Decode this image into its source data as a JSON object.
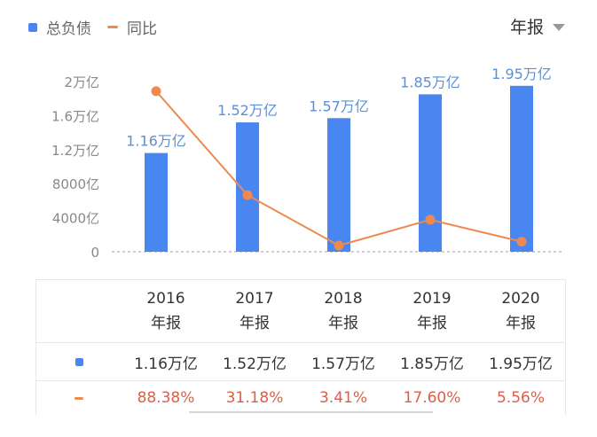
{
  "legend": {
    "bar_label": "总负债",
    "line_label": "同比"
  },
  "period_selector": {
    "label": "年报"
  },
  "colors": {
    "bar": "#4a86f0",
    "line": "#ee8a50",
    "bar_label": "#5b90d8",
    "negative_text": "#d9604a"
  },
  "chart_data": {
    "type": "bar",
    "categories": [
      "2016",
      "2017",
      "2018",
      "2019",
      "2020"
    ],
    "bar_series": {
      "name": "总负债",
      "values": [
        11600,
        15200,
        15700,
        18500,
        19500
      ],
      "labels": [
        "1.16万亿",
        "1.52万亿",
        "1.57万亿",
        "1.85万亿",
        "1.95万亿"
      ]
    },
    "line_series": {
      "name": "同比",
      "values": [
        88.38,
        31.18,
        3.41,
        17.6,
        5.56
      ]
    },
    "y_axis": {
      "range": [
        0,
        20000
      ],
      "ticks": [
        0,
        4000,
        8000,
        12000,
        16000,
        20000
      ],
      "tick_labels": [
        "0",
        "4000亿",
        "8000亿",
        "1.2万亿",
        "1.6万亿",
        "2万亿"
      ]
    },
    "grid": "dashed-baseline-only"
  },
  "table": {
    "columns": [
      {
        "year": "2016",
        "period": "年报"
      },
      {
        "year": "2017",
        "period": "年报"
      },
      {
        "year": "2018",
        "period": "年报"
      },
      {
        "year": "2019",
        "period": "年报"
      },
      {
        "year": "2020",
        "period": "年报"
      }
    ],
    "bar_row": [
      "1.16万亿",
      "1.52万亿",
      "1.57万亿",
      "1.85万亿",
      "1.95万亿"
    ],
    "line_row": [
      "88.38%",
      "31.18%",
      "3.41%",
      "17.60%",
      "5.56%"
    ]
  }
}
